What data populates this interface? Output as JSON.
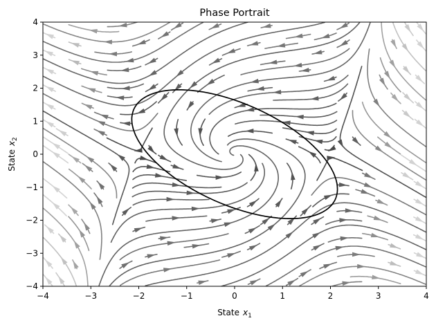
{
  "chart_data": {
    "type": "streamplot",
    "title": "Phase Portrait",
    "xlabel_prefix": "State",
    "xlabel_var": "x",
    "xlabel_sub": "1",
    "ylabel_prefix": "State",
    "ylabel_var": "x",
    "ylabel_sub": "2",
    "xlim": [
      -4,
      4
    ],
    "ylim": [
      -4,
      4
    ],
    "xticks": [
      -4,
      -3,
      -2,
      -1,
      0,
      1,
      2,
      3,
      4
    ],
    "yticks": [
      -4,
      -3,
      -2,
      -1,
      0,
      1,
      2,
      3,
      4
    ],
    "grid": false,
    "equilibria": [
      [
        0,
        0
      ],
      [
        -2,
        0.5
      ],
      [
        2,
        -0.5
      ]
    ],
    "stable_focus": [
      0,
      0
    ],
    "region_boundary_ellipse": {
      "center": [
        0,
        0
      ],
      "semi_axes": [
        2.55,
        1.38
      ],
      "rotation_deg": -40
    },
    "streamline_color": "#505050",
    "ellipse_color": "#000000"
  }
}
